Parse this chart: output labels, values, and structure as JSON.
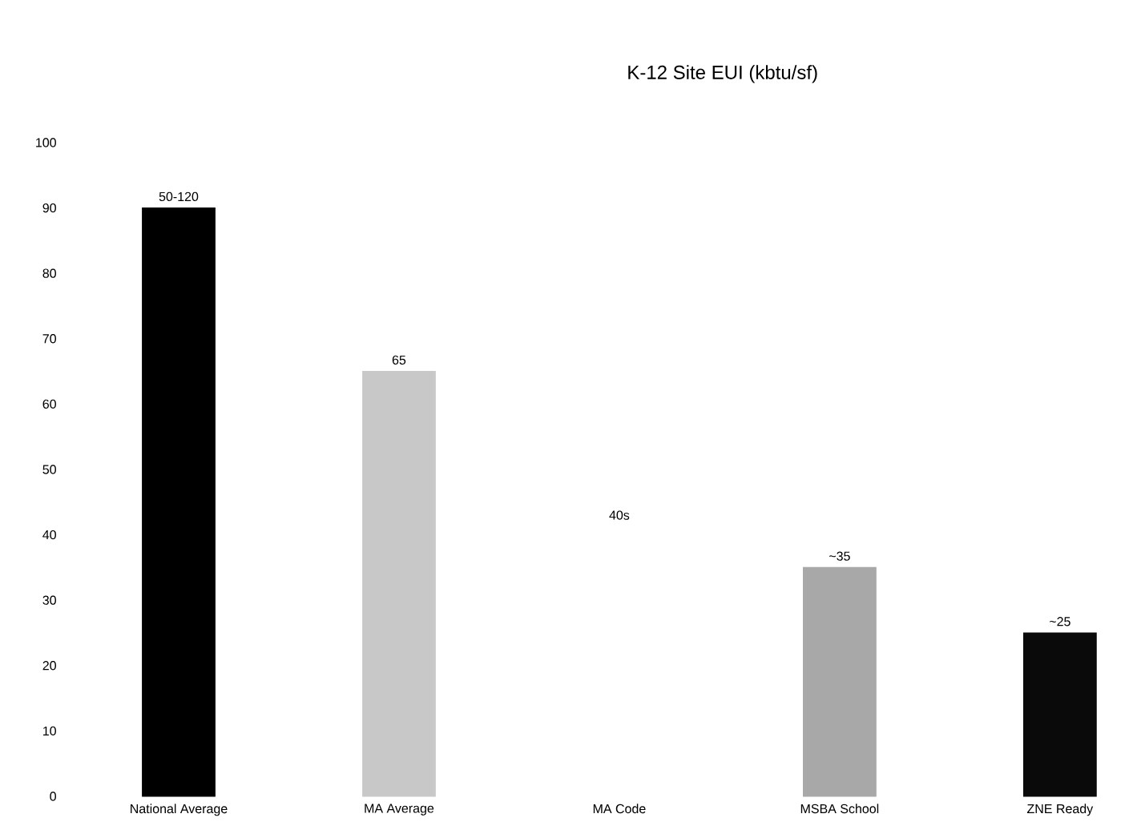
{
  "chart_data": {
    "type": "bar",
    "title": "K-12 Site EUI (kbtu/sf)",
    "categories": [
      "National Average",
      "MA Average",
      "MA Code",
      "MSBA School",
      "ZNE Ready"
    ],
    "values": [
      90,
      65,
      null,
      35,
      25
    ],
    "colors": [
      "#000000",
      "#c8c8c8",
      null,
      "#a8a8a8",
      "#0a0a0a"
    ],
    "value_labels": [
      "50-120",
      "65",
      null,
      "~35",
      "~25"
    ],
    "annotations": [
      "40s"
    ],
    "ylim": [
      0,
      100
    ],
    "yticks": [
      0,
      10,
      20,
      30,
      40,
      50,
      60,
      70,
      80,
      90,
      100
    ],
    "grid": false
  }
}
